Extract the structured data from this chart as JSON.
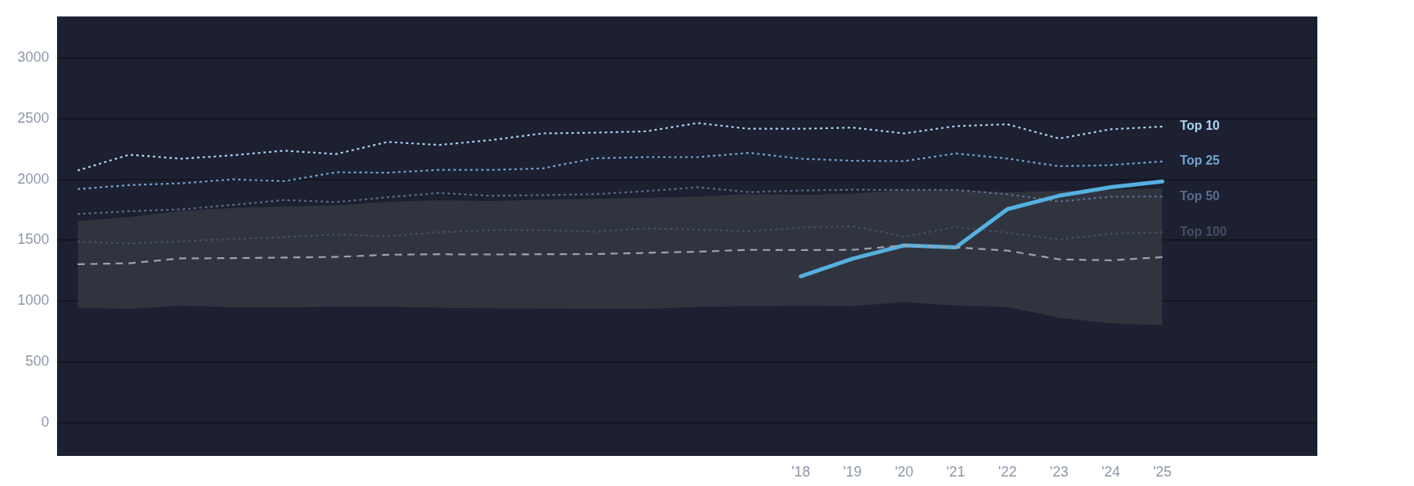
{
  "chart_data": {
    "type": "line",
    "x": [
      2004,
      2005,
      2006,
      2007,
      2008,
      2009,
      2010,
      2011,
      2012,
      2013,
      2014,
      2015,
      2016,
      2017,
      2018,
      2019,
      2020,
      2021,
      2022,
      2023,
      2024,
      2025
    ],
    "xlim": [
      2003.6,
      2028
    ],
    "xticks": [
      {
        "value": 2018,
        "label": "'18"
      },
      {
        "value": 2019,
        "label": "'19"
      },
      {
        "value": 2020,
        "label": "'20"
      },
      {
        "value": 2021,
        "label": "'21"
      },
      {
        "value": 2022,
        "label": "'22"
      },
      {
        "value": 2023,
        "label": "'23"
      },
      {
        "value": 2024,
        "label": "'24"
      },
      {
        "value": 2025,
        "label": "'25"
      }
    ],
    "ylim": [
      -275,
      3340
    ],
    "yticks": [
      0,
      500,
      1000,
      1500,
      2000,
      2500,
      3000
    ],
    "grid": "y",
    "legend": false,
    "series": [
      {
        "color": "#9ea3ab",
        "line_style": "dashed",
        "values": [
          1302,
          1310,
          1350,
          1352,
          1357,
          1362,
          1380,
          1384,
          1382,
          1384,
          1386,
          1395,
          1405,
          1420,
          1418,
          1420,
          1457,
          1440,
          1414,
          1342,
          1334,
          1360
        ],
        "lower": [
          945,
          934,
          960,
          947,
          947,
          952,
          952,
          945,
          940,
          938,
          934,
          934,
          950,
          956,
          960,
          958,
          990,
          962,
          949,
          862,
          815,
          801
        ],
        "upper": [
          1658,
          1690,
          1740,
          1765,
          1777,
          1785,
          1815,
          1828,
          1822,
          1833,
          1840,
          1850,
          1857,
          1878,
          1873,
          1882,
          1915,
          1912,
          1895,
          1905,
          1915,
          1925
        ]
      },
      {
        "name": "Top 100",
        "color": "#434f65",
        "line_style": "dotted",
        "values": [
          1487,
          1472,
          1490,
          1510,
          1525,
          1547,
          1532,
          1565,
          1582,
          1582,
          1570,
          1597,
          1587,
          1573,
          1603,
          1615,
          1528,
          1608,
          1560,
          1506,
          1553,
          1565
        ]
      },
      {
        "name": "Top 50",
        "color": "#5a6d8e",
        "line_style": "dotted",
        "values": [
          1715,
          1738,
          1753,
          1790,
          1830,
          1813,
          1853,
          1888,
          1865,
          1870,
          1878,
          1903,
          1935,
          1895,
          1908,
          1915,
          1913,
          1913,
          1877,
          1818,
          1858,
          1860
        ]
      },
      {
        "name": "Top 25",
        "color": "#72a6d3",
        "line_style": "dotted",
        "values": [
          1920,
          1953,
          1968,
          2000,
          1986,
          2058,
          2055,
          2078,
          2078,
          2090,
          2173,
          2183,
          2183,
          2218,
          2170,
          2153,
          2150,
          2213,
          2171,
          2108,
          2117,
          2148
        ]
      },
      {
        "name": "Top 10",
        "color": "#a9d6f5",
        "line_style": "dotted",
        "values": [
          2073,
          2203,
          2170,
          2198,
          2236,
          2208,
          2308,
          2283,
          2323,
          2378,
          2384,
          2395,
          2463,
          2416,
          2416,
          2426,
          2378,
          2438,
          2453,
          2336,
          2412,
          2434
        ]
      },
      {
        "color": "#55b0e0",
        "line_style": "solid",
        "x": [
          2018,
          2019,
          2020,
          2021,
          2022,
          2023,
          2024,
          2025
        ],
        "values": [
          1202,
          1347,
          1457,
          1440,
          1755,
          1865,
          1935,
          1983
        ]
      }
    ]
  }
}
